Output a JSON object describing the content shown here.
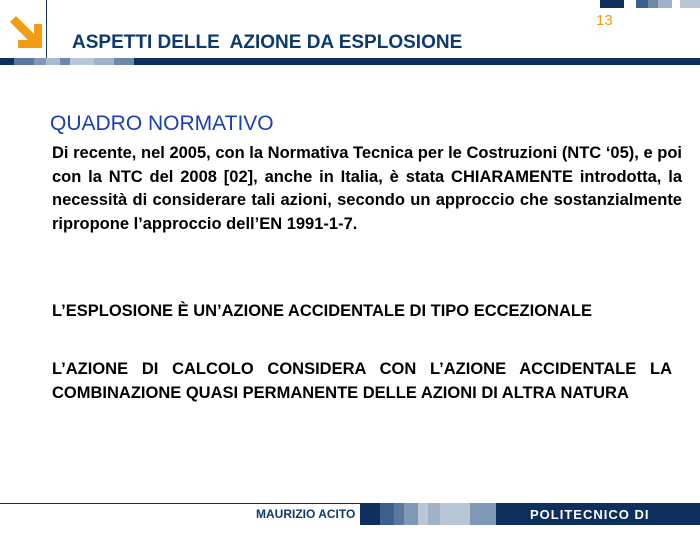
{
  "header": {
    "title": "ASPETTI DELLE  AZIONE DA ESPLOSIONE",
    "page_number": "13",
    "logo_icon": "arrow-down-right-icon",
    "accent": "#f39c12",
    "brand": "#0d2f5e"
  },
  "main": {
    "subtitle": "QUADRO NORMATIVO",
    "paragraph": "Di recente, nel 2005, con la Normativa Tecnica per le Costruzioni (NTC ‘05), e poi con la NTC del 2008 [02], anche in Italia, è stata CHIARAMENTE introdotta, la necessità di considerare tali azioni, secondo un approccio che sostanzialmente ripropone l’approccio dell’EN 1991-1-7.",
    "statements": [
      "L’ESPLOSIONE È UN’AZIONE ACCIDENTALE DI TIPO ECCEZIONALE",
      "L’AZIONE DI CALCOLO CONSIDERA CON L’AZIONE ACCIDENTALE LA COMBINAZIONE QUASI PERMANENTE DELLE AZIONI DI ALTRA NATURA"
    ]
  },
  "footer": {
    "author": "MAURIZIO ACITO",
    "institution": "POLITECNICO DI MILANO"
  }
}
